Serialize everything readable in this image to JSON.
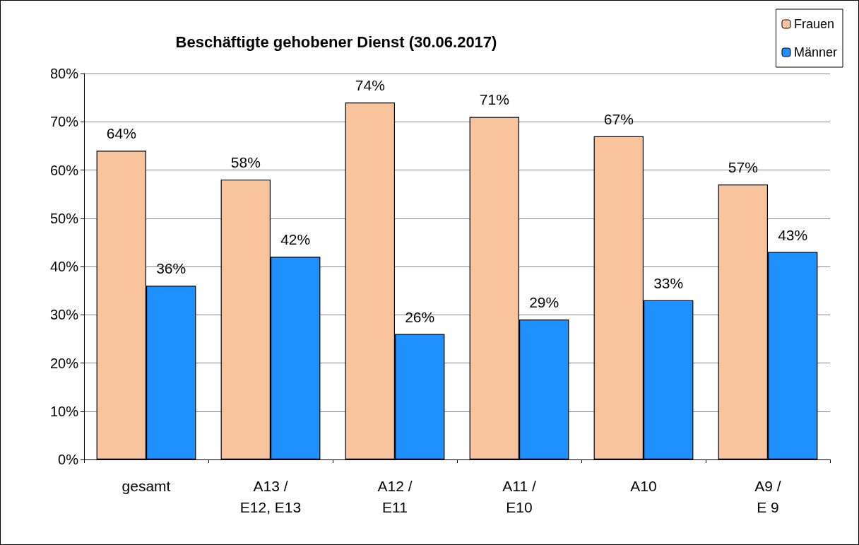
{
  "chart_data": {
    "type": "bar",
    "title": "Beschäftigte gehobener Dienst (30.06.2017)",
    "categories": [
      "gesamt",
      "A13 /\nE12, E13",
      "A12 /\nE11",
      "A11 /\nE10",
      "A10",
      "A9 /\nE 9"
    ],
    "series": [
      {
        "name": "Frauen",
        "color": "#f8c49e",
        "values": [
          64,
          58,
          74,
          71,
          67,
          57
        ],
        "value_labels": [
          "64%",
          "58%",
          "74%",
          "71%",
          "67%",
          "57%"
        ]
      },
      {
        "name": "Männer",
        "color": "#1e90ff",
        "values": [
          36,
          42,
          26,
          29,
          33,
          43
        ],
        "value_labels": [
          "36%",
          "42%",
          "26%",
          "29%",
          "33%",
          "43%"
        ]
      }
    ],
    "ylim": [
      0,
      80
    ],
    "yticks": [
      {
        "value": 0,
        "label": "0%"
      },
      {
        "value": 10,
        "label": "10%"
      },
      {
        "value": 20,
        "label": "20%"
      },
      {
        "value": 30,
        "label": "30%"
      },
      {
        "value": 40,
        "label": "40%"
      },
      {
        "value": 50,
        "label": "50%"
      },
      {
        "value": 60,
        "label": "60%"
      },
      {
        "value": 70,
        "label": "70%"
      },
      {
        "value": 80,
        "label": "80%"
      }
    ],
    "grid": "y",
    "legend": "top right"
  }
}
